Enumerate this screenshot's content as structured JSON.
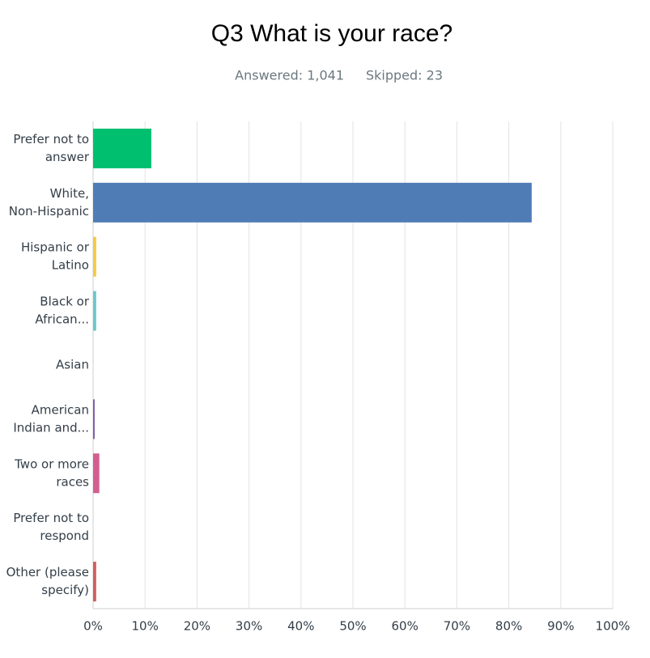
{
  "chart_data": {
    "type": "bar",
    "orientation": "horizontal",
    "title": "Q3 What is your race?",
    "answered": "Answered: 1,041",
    "skipped": "Skipped: 23",
    "categories": [
      [
        "Prefer not to",
        "answer"
      ],
      [
        "White,",
        "Non-Hispanic"
      ],
      [
        "Hispanic or",
        "Latino"
      ],
      [
        "Black or",
        "African..."
      ],
      [
        "Asian"
      ],
      [
        "American",
        "Indian and..."
      ],
      [
        "Two or more",
        "races"
      ],
      [
        "Prefer not to",
        "respond"
      ],
      [
        "Other (please",
        "specify)"
      ]
    ],
    "values": [
      11.2,
      84.4,
      0.6,
      0.6,
      0,
      0.3,
      1.2,
      0,
      0.6
    ],
    "colors": [
      "#00bf6f",
      "#507cb6",
      "#f5c940",
      "#6bc8cd",
      "#7f7fc0",
      "#7d5ba6",
      "#d25f90",
      "#dd8a52",
      "#d25f5f"
    ],
    "xlim": [
      0,
      100
    ],
    "xticks": [
      {
        "value": 0,
        "label": "0%"
      },
      {
        "value": 10,
        "label": "10%"
      },
      {
        "value": 20,
        "label": "20%"
      },
      {
        "value": 30,
        "label": "30%"
      },
      {
        "value": 40,
        "label": "40%"
      },
      {
        "value": 50,
        "label": "50%"
      },
      {
        "value": 60,
        "label": "60%"
      },
      {
        "value": 70,
        "label": "70%"
      },
      {
        "value": 80,
        "label": "80%"
      },
      {
        "value": 90,
        "label": "90%"
      },
      {
        "value": 100,
        "label": "100%"
      }
    ],
    "grid": true
  }
}
